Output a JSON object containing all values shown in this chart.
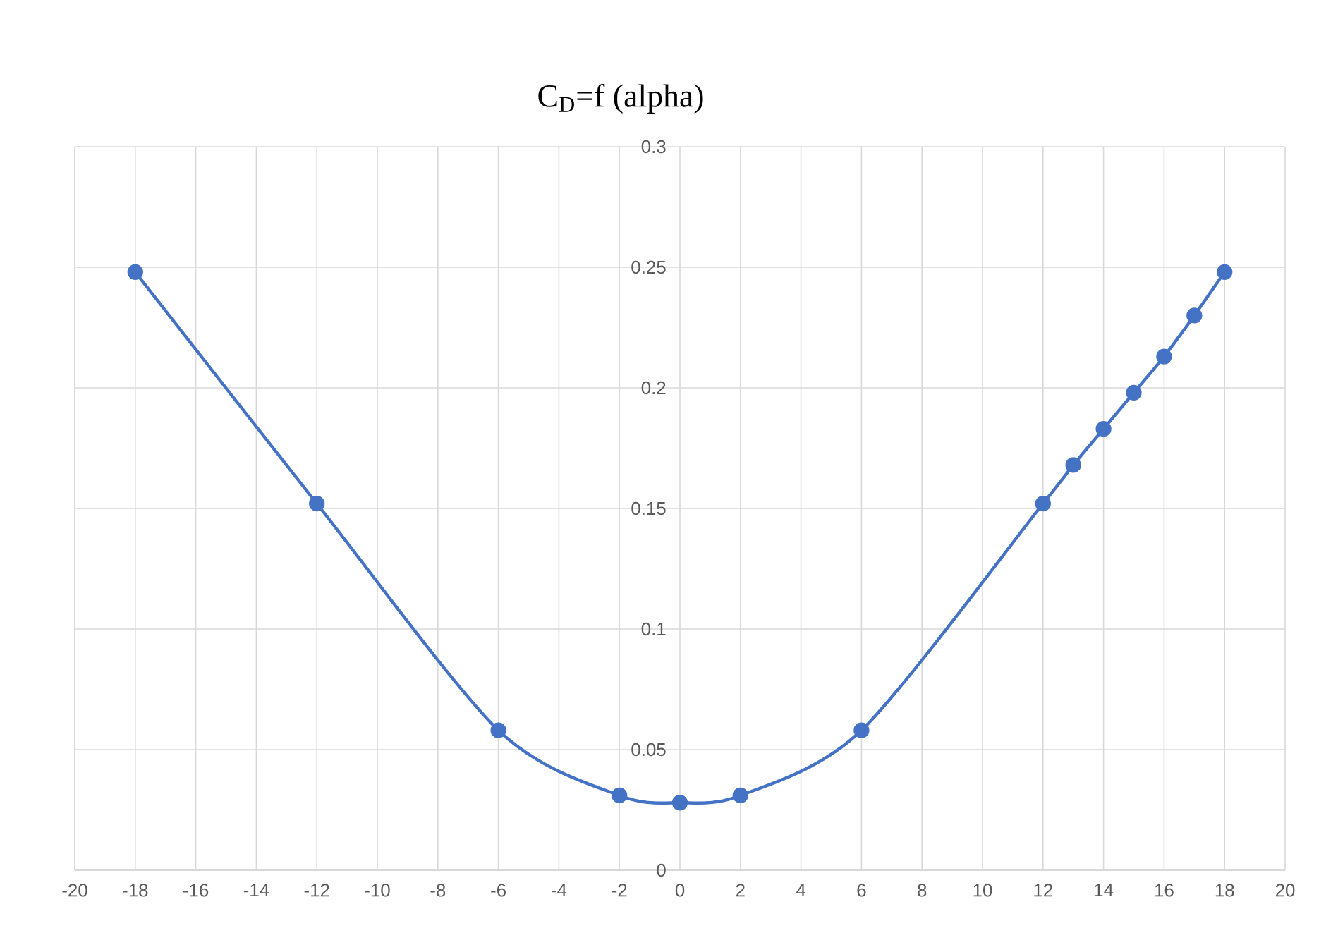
{
  "chart_data": {
    "type": "line",
    "title": "C$_{D}$=f (alpha)",
    "x": [
      -18,
      -12,
      -6,
      -2,
      0,
      2,
      6,
      12,
      13,
      14,
      15,
      16,
      17,
      18
    ],
    "series": [
      {
        "color": "#4472c4",
        "values": [
          0.248,
          0.152,
          0.058,
          0.031,
          0.028,
          0.031,
          0.058,
          0.152,
          0.168,
          0.183,
          0.198,
          0.213,
          0.23,
          0.248
        ]
      }
    ],
    "xlim": [
      -20,
      20
    ],
    "xticks": [
      -20,
      -18,
      -16,
      -14,
      -12,
      -10,
      -8,
      -6,
      -4,
      -2,
      0,
      2,
      4,
      6,
      8,
      10,
      12,
      14,
      16,
      18,
      20
    ],
    "ylim": [
      0,
      0.3
    ],
    "yticks": [
      0,
      0.05,
      0.1,
      0.15,
      0.2,
      0.25,
      0.3
    ],
    "grid": true,
    "marker": "circle",
    "line_style": "solid"
  }
}
